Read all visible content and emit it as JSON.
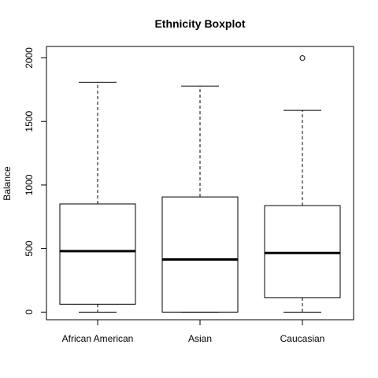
{
  "chart_data": {
    "type": "boxplot",
    "title": "Ethnicity Boxplot",
    "xlabel": "",
    "ylabel": "Balance",
    "ylim": [
      -60,
      2090
    ],
    "yticks": [
      0,
      500,
      1000,
      1500,
      2000
    ],
    "categories": [
      "African American",
      "Asian",
      "Caucasian"
    ],
    "boxes": [
      {
        "category": "African American",
        "min": 0,
        "q1": 62,
        "median": 480,
        "q3": 851,
        "max": 1809,
        "outliers": []
      },
      {
        "category": "Asian",
        "min": 0,
        "q1": 0,
        "median": 414,
        "q3": 906,
        "max": 1779,
        "outliers": []
      },
      {
        "category": "Caucasian",
        "min": 0,
        "q1": 114,
        "median": 465,
        "q3": 838,
        "max": 1587,
        "outliers": [
          1999
        ]
      }
    ],
    "grid": false,
    "legend": "none"
  }
}
